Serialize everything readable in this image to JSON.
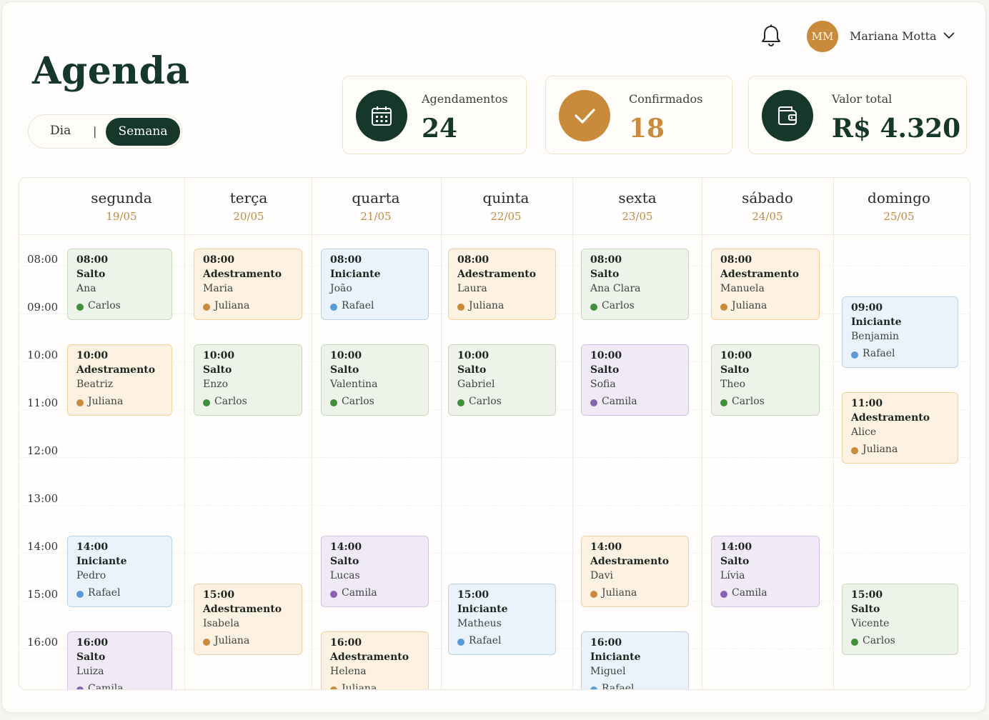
{
  "page": {
    "title": "Agenda"
  },
  "view_toggle": {
    "day_label": "Dia",
    "separator": "|",
    "week_label": "Semana",
    "selected": "Semana"
  },
  "header": {
    "avatar_initials": "MM",
    "user_name": "Mariana Motta",
    "bell_icon": "bell-icon",
    "dropdown_icon": "chevron-down-icon"
  },
  "stats": [
    {
      "label": "Agendamentos",
      "value": "24",
      "icon": "calendar-icon",
      "icon_bg": "#15382a",
      "value_color": "#15382a"
    },
    {
      "label": "Confirmados",
      "value": "18",
      "icon": "check-icon",
      "icon_bg": "#c98a3b",
      "value_color": "#c98a3b"
    },
    {
      "label": "Valor total",
      "value": "R$ 4.320",
      "icon": "wallet-icon",
      "icon_bg": "#15382a",
      "value_color": "#15382a"
    }
  ],
  "days": [
    {
      "name": "segunda",
      "date": "19/05"
    },
    {
      "name": "terça",
      "date": "20/05"
    },
    {
      "name": "quarta",
      "date": "21/05"
    },
    {
      "name": "quinta",
      "date": "22/05"
    },
    {
      "name": "sexta",
      "date": "23/05"
    },
    {
      "name": "sábado",
      "date": "24/05"
    },
    {
      "name": "domingo",
      "date": "25/05"
    }
  ],
  "hours": [
    "08:00",
    "09:00",
    "10:00",
    "11:00",
    "12:00",
    "13:00",
    "14:00",
    "15:00",
    "16:00"
  ],
  "category_colors": {
    "green": {
      "bg": "#eef3ea",
      "border": "#c6d9bd",
      "dot": "#3f8f3a"
    },
    "orange": {
      "bg": "#fdf1e2",
      "border": "#f1cfa0",
      "dot": "#c98a3b"
    },
    "blue": {
      "bg": "#eaf2fb",
      "border": "#b9d2ec",
      "dot": "#5a9bd5"
    },
    "purple": {
      "bg": "#efeaf5",
      "border": "#cfc3e0",
      "dot": "#8564b5"
    }
  },
  "appointments": [
    {
      "day": 0,
      "time": "08:00",
      "type": "Salto",
      "client": "Ana",
      "trainer": "Carlos",
      "color": "green"
    },
    {
      "day": 0,
      "time": "10:00",
      "type": "Adestramento",
      "client": "Beatriz",
      "trainer": "Juliana",
      "color": "orange"
    },
    {
      "day": 0,
      "time": "14:00",
      "type": "Iniciante",
      "client": "Pedro",
      "trainer": "Rafael",
      "color": "blue"
    },
    {
      "day": 0,
      "time": "16:00",
      "type": "Salto",
      "client": "Luiza",
      "trainer": "Camila",
      "color": "purple"
    },
    {
      "day": 1,
      "time": "08:00",
      "type": "Adestramento",
      "client": "Maria",
      "trainer": "Juliana",
      "color": "orange"
    },
    {
      "day": 1,
      "time": "10:00",
      "type": "Salto",
      "client": "Enzo",
      "trainer": "Carlos",
      "color": "green"
    },
    {
      "day": 1,
      "time": "15:00",
      "type": "Adestramento",
      "client": "Isabela",
      "trainer": "Juliana",
      "color": "orange"
    },
    {
      "day": 2,
      "time": "08:00",
      "type": "Iniciante",
      "client": "João",
      "trainer": "Rafael",
      "color": "blue"
    },
    {
      "day": 2,
      "time": "10:00",
      "type": "Salto",
      "client": "Valentina",
      "trainer": "Carlos",
      "color": "green"
    },
    {
      "day": 2,
      "time": "14:00",
      "type": "Salto",
      "client": "Lucas",
      "trainer": "Camila",
      "color": "purple"
    },
    {
      "day": 2,
      "time": "16:00",
      "type": "Adestramento",
      "client": "Helena",
      "trainer": "Juliana",
      "color": "orange"
    },
    {
      "day": 3,
      "time": "08:00",
      "type": "Adestramento",
      "client": "Laura",
      "trainer": "Juliana",
      "color": "orange"
    },
    {
      "day": 3,
      "time": "10:00",
      "type": "Salto",
      "client": "Gabriel",
      "trainer": "Carlos",
      "color": "green"
    },
    {
      "day": 3,
      "time": "15:00",
      "type": "Iniciante",
      "client": "Matheus",
      "trainer": "Rafael",
      "color": "blue"
    },
    {
      "day": 4,
      "time": "08:00",
      "type": "Salto",
      "client": "Ana Clara",
      "trainer": "Carlos",
      "color": "green"
    },
    {
      "day": 4,
      "time": "10:00",
      "type": "Salto",
      "client": "Sofia",
      "trainer": "Camila",
      "color": "purple"
    },
    {
      "day": 4,
      "time": "14:00",
      "type": "Adestramento",
      "client": "Davi",
      "trainer": "Juliana",
      "color": "orange"
    },
    {
      "day": 4,
      "time": "16:00",
      "type": "Iniciante",
      "client": "Miguel",
      "trainer": "Rafael",
      "color": "blue"
    },
    {
      "day": 5,
      "time": "08:00",
      "type": "Adestramento",
      "client": "Manuela",
      "trainer": "Juliana",
      "color": "orange"
    },
    {
      "day": 5,
      "time": "10:00",
      "type": "Salto",
      "client": "Theo",
      "trainer": "Carlos",
      "color": "green"
    },
    {
      "day": 5,
      "time": "14:00",
      "type": "Salto",
      "client": "Lívia",
      "trainer": "Camila",
      "color": "purple"
    },
    {
      "day": 6,
      "time": "09:00",
      "type": "Iniciante",
      "client": "Benjamin",
      "trainer": "Rafael",
      "color": "blue"
    },
    {
      "day": 6,
      "time": "11:00",
      "type": "Adestramento",
      "client": "Alice",
      "trainer": "Juliana",
      "color": "orange"
    },
    {
      "day": 6,
      "time": "15:00",
      "type": "Salto",
      "client": "Vicente",
      "trainer": "Carlos",
      "color": "green"
    }
  ]
}
